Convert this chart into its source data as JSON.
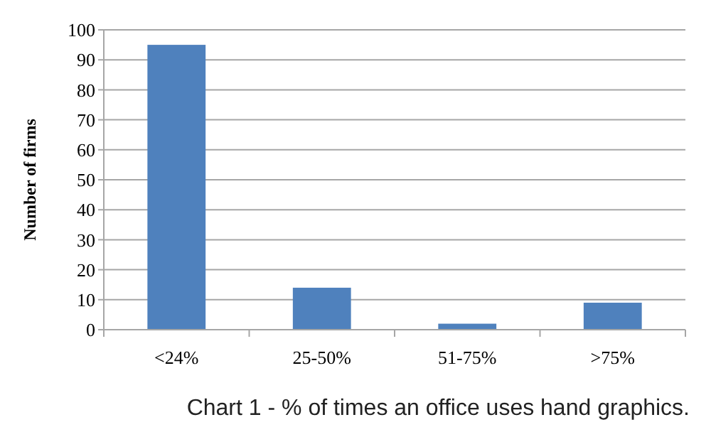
{
  "chart_data": {
    "type": "bar",
    "ylabel": "Number of firms",
    "categories": [
      "<24%",
      "25-50%",
      "51-75%",
      ">75%"
    ],
    "values": [
      95,
      14,
      2,
      9
    ],
    "color": "#4f81bd",
    "ylim": [
      0,
      100
    ],
    "yticks": [
      0,
      10,
      20,
      30,
      40,
      50,
      60,
      70,
      80,
      90,
      100
    ],
    "grid": "y",
    "annotations": [
      "Chart 1 - % of times an office uses hand graphics."
    ]
  }
}
